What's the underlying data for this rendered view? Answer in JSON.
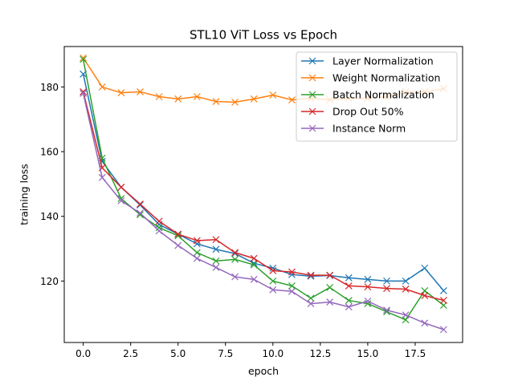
{
  "chart_data": {
    "type": "line",
    "title": "STL10 ViT Loss vs Epoch",
    "xlabel": "epoch",
    "ylabel": "training loss",
    "xlim": [
      -1.0,
      20.0
    ],
    "ylim": [
      101.0,
      192.5
    ],
    "xticks": [
      0.0,
      2.5,
      5.0,
      7.5,
      10.0,
      12.5,
      15.0,
      17.5
    ],
    "xtick_labels": [
      "0.0",
      "2.5",
      "5.0",
      "7.5",
      "10.0",
      "12.5",
      "15.0",
      "17.5"
    ],
    "yticks": [
      120,
      140,
      160,
      180
    ],
    "ytick_labels": [
      "120",
      "140",
      "160",
      "180"
    ],
    "grid": false,
    "legend_position": "top-right",
    "marker": "x",
    "x": [
      0,
      1,
      2,
      3,
      4,
      5,
      6,
      7,
      8,
      9,
      10,
      11,
      12,
      13,
      14,
      15,
      16,
      17,
      18,
      19
    ],
    "series": [
      {
        "name": "Layer Normalization",
        "color": "#1f77b4",
        "values": [
          184.0,
          157.0,
          149.0,
          143.5,
          137.5,
          134.5,
          131.5,
          129.8,
          128.5,
          125.5,
          124.0,
          122.0,
          121.5,
          121.7,
          121.0,
          120.5,
          120.0,
          120.0,
          124.0,
          117.0
        ]
      },
      {
        "name": "Weight Normalization",
        "color": "#ff7f0e",
        "values": [
          189.0,
          180.0,
          178.2,
          178.5,
          177.0,
          176.3,
          177.0,
          175.5,
          175.3,
          176.3,
          177.5,
          176.0,
          176.5,
          176.0,
          176.5,
          176.5,
          177.0,
          178.5,
          178.5,
          179.5
        ]
      },
      {
        "name": "Batch Normalization",
        "color": "#2ca02c",
        "values": [
          188.5,
          158.0,
          145.5,
          140.5,
          136.5,
          134.0,
          128.8,
          126.2,
          126.7,
          125.0,
          120.0,
          118.5,
          114.7,
          118.0,
          114.0,
          113.0,
          110.5,
          108.0,
          117.0,
          112.5
        ]
      },
      {
        "name": "Drop Out 50%",
        "color": "#d62728",
        "values": [
          178.5,
          155.0,
          149.0,
          143.8,
          138.5,
          134.5,
          132.5,
          132.8,
          128.8,
          127.0,
          123.2,
          122.8,
          121.8,
          121.8,
          118.5,
          118.2,
          117.7,
          117.5,
          115.5,
          114.0
        ]
      },
      {
        "name": "Instance Norm",
        "color": "#9467bd",
        "values": [
          178.0,
          152.0,
          144.8,
          141.0,
          135.5,
          131.0,
          127.0,
          124.2,
          121.3,
          120.5,
          117.3,
          116.8,
          113.0,
          113.5,
          112.0,
          113.8,
          111.0,
          109.5,
          107.0,
          105.0
        ]
      }
    ]
  }
}
